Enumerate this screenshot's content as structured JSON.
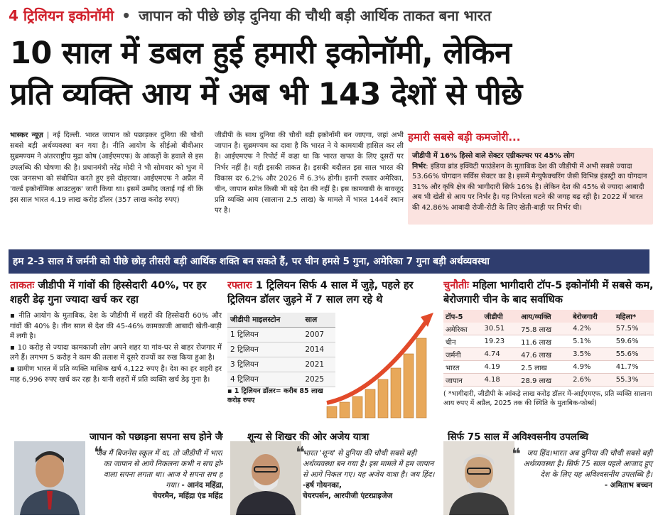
{
  "kicker": {
    "tag": "4 ट्रिलियन इकोनॉमी",
    "dot": "•",
    "text": "जापान को पीछे छोड़ दुनिया की चौथी बड़ी आर्थिक ताकत बना भारत"
  },
  "headline": {
    "line1": "10 साल में डबल हुई हमारी इकोनॉमी, लेकिन",
    "line2": "प्रति व्यक्ति आय में अब भी 143 देशों से पीछे"
  },
  "story": {
    "byline": "भास्कर न्यूज़",
    "col1": "| नई दिल्ली. भारत जापान को पछाड़कर दुनिया की चौथी सबसे बड़ी अर्थव्यवस्था बन गया है। नीति आयोग के सीईओ बीवीआर सुब्रमण्यम ने अंतरराष्ट्रीय मुद्रा कोष (आईएमएफ) के आंकड़ों के हवाले से इस उपलब्धि की घोषणा की है। प्रधानमंत्री नरेंद्र मोदी ने भी सोमवार को भुज में एक जनसभा को संबोधित करते हुए इसे दोहराया। आईएमएफ ने अप्रैल में 'वर्ल्ड इकोनॉमिक आउटलुक' जारी किया था। इसमें उम्मीद जताई गई थी कि इस साल भारत 4.19 लाख करोड़ डॉलर (357 लाख करोड़ रुपए)",
    "col2": "जीडीपी के साथ दुनिया की चौथी बड़ी इकोनॉमी बन जाएगा, जहां अभी जापान है। सुब्रमण्यम का दावा है कि भारत ने ये कामयाबी हासिल कर ली है। आईएमएफ ने रिपोर्ट में कहा था कि भारत खपत के लिए दूसरों पर निर्भर नहीं है। यही इसकी ताकत है। इसकी बदौलत इस साल भारत की विकास दर 6.2% और 2026 में 6.3% होगी। इतनी रफ्तार अमेरिका, चीन, जापान समेत किसी भी बड़े देश की नहीं है। इस कामयाबी के बावजूद प्रति व्यक्ति आय (सालाना 2.5 लाख) के मामले में भारत 144वें स्थान पर है।"
  },
  "weakness": {
    "title": "हमारी सबसे बड़ी कमजोरी...",
    "lead": "जीडीपी में 16% हिस्से वाले सेक्टर एग्रीकल्चर पर 45% लोग",
    "label": "निर्भर",
    "text": ": इंडिया ब्रांड इक्विटी फाउंडेशन के मुताबिक देश की जीडीपी में अभी सबसे ज्यादा 53.66% योगदान सर्विस सेक्टर का है। इसमें मैन्युफैक्चरिंग जैसी विभिन्न इंडस्ट्री का योगदान 31% और कृषि क्षेत्र की भागीदारी सिर्फ 16% है। लेकिन देश की 45% से ज्यादा आबादी अब भी खेती से आय पर निर्भर है। यह निर्भरता घटने की जगह बढ़ रही है। 2022 में भारत की 42.86% आबादी रोजी-रोटी के लिए खेती-बाड़ी पर निर्भर थी।"
  },
  "banner": "हम 2-3 साल में जर्मनी को पीछे छोड़ तीसरी बड़ी आर्थिक शक्ति बन सकते हैं, पर चीन हमसे 5 गुना, अमेरिका 7 गुना बड़ी अर्थव्यवस्था",
  "strength": {
    "label": "ताकतः",
    "title": "जीडीपी में गांवों की हिस्सेदारी 40%, पर हर शहरी डेढ़ गुना ज्यादा खर्च कर रहा",
    "b1": "▪ नीति आयोग के मुताबिक, देश के जीडीपी में शहरों की हिस्सेदारी 60% और गांवों की 40% है। तीन साल से देश की 45-46% कामकाजी आबादी खेती-बाड़ी में लगी है।",
    "b2": "▪ 10 करोड़ से ज्यादा कामकाजी लोग अपने शहर या गांव-घर से बाहर रोजगार में लगे हैं। लगभग 5 करोड़ ने काम की तलाश में दूसरे राज्यों का रुख किया हुआ है।",
    "b3": "▪ ग्रामीण भारत में प्रति व्यक्ति मासिक खर्च 4,122 रुपए है। देश का हर शहरी हर माह 6,996 रुपए खर्च कर रहा है। यानी शहरों में प्रति व्यक्ति खर्च डेढ़ गुना है।"
  },
  "speed": {
    "label": "रफ्तारः",
    "title": "1 ट्रिलियन सिर्फ 4 साल में जुड़े, पहले हर ट्रिलियन डॉलर जुड़ने में 7 साल लग रहे थे",
    "head_milestone": "जीडीपी माइलस्टोन",
    "head_year": "साल",
    "rows": [
      {
        "milestone": "1 ट्रिलियन",
        "year": "2007"
      },
      {
        "milestone": "2 ट्रिलियन",
        "year": "2014"
      },
      {
        "milestone": "3 ट्रिलियन",
        "year": "2021"
      },
      {
        "milestone": "4 ट्रिलियन",
        "year": "2025"
      }
    ],
    "note": "▪ 1 ट्रिलियन डॉलर= करीब 85 लाख करोड़ रुपए"
  },
  "challenge": {
    "label": "चुनौतीः",
    "title": "महिला भागीदारी टॉप-5 इकोनॉमी में सबसे कम, बेरोजगारी चीन के बाद सर्वाधिक",
    "headers": [
      "टॉप-5",
      "जीडीपी",
      "आय/व्यक्ति",
      "बेरोजगारी",
      "महिला*"
    ],
    "rows": [
      [
        "अमेरिका",
        "30.51",
        "75.8 लाख",
        "4.2%",
        "57.5%"
      ],
      [
        "चीन",
        "19.23",
        "11.6 लाख",
        "5.1%",
        "59.6%"
      ],
      [
        "जर्मनी",
        "4.74",
        "47.6 लाख",
        "3.5%",
        "55.6%"
      ],
      [
        "भारत",
        "4.19",
        "2.5 लाख",
        "4.9%",
        "41.7%"
      ],
      [
        "जापान",
        "4.18",
        "28.9 लाख",
        "2.6%",
        "55.3%"
      ]
    ],
    "note": "( *भागीदारी, जीडीपी के आंकड़े लाख करोड़ डॉलर में-आईएमएफ, प्रति व्यक्ति सालाना आय रुपए में अप्रैल, 2025 तक की स्थिति के मुताबिक-फोर्ब्स)"
  },
  "quotes": {
    "q1": {
      "title": "जापान को पछाड़ना सपना सच होने जैसा",
      "text": "जब मैं बिजनेस स्कूल में था, तो जीडीपी में भारत का जापान से आगे निकलना कभी न सच होने वाला सपना लगता था। आज ये सपना सच हो गया।",
      "author": "- आनंद महिंद्रा,",
      "role": "चेयरमैन, महिंद्रा एंड महिंद्रा"
    },
    "q2": {
      "title": "शून्य से शिखर की ओर अजेय यात्रा",
      "text": "भारत 'शून्य' से दुनिया की चौथी सबसे बड़ी अर्थव्यवस्था बन गया है। इस मामले में हम जापान से आगे निकल गए। यह अजेय यात्रा है। जय हिंद।",
      "author": "-हर्ष गोयनका,",
      "role": "चेयरपर्सन, आरपीजी एंटरप्राइजेज"
    },
    "q3": {
      "title": "सिर्फ 75 साल में अविश्वसनीय उपलब्धि",
      "text": "जय हिंद।भारत अब दुनिया की चौथी सबसे बड़ी अर्थव्यवस्था है। सिर्फ 75 साल पहले आजाद हुए देश के लिए यह अविश्वसनीय उपलब्धि है।",
      "author": "- अमिताभ बच्चन"
    }
  },
  "colors": {
    "accent_red": "#d01f2a",
    "banner_navy": "#2f3d6e",
    "pink_box": "#fbe3e0"
  }
}
